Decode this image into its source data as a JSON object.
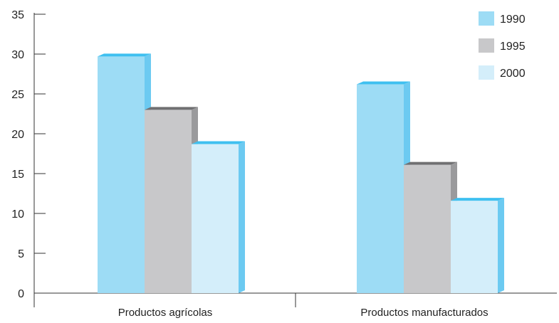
{
  "chart_data": {
    "type": "bar",
    "categories": [
      "Productos agrícolas",
      "Productos manufacturados"
    ],
    "series": [
      {
        "name": "1990",
        "values": [
          29.7,
          26.2
        ],
        "color": "#9ddcf5",
        "side_color": "#6ccaf1",
        "top_color": "#3fc0f0"
      },
      {
        "name": "1995",
        "values": [
          23.0,
          16.1
        ],
        "color": "#c8c8ca",
        "side_color": "#9a9a9c",
        "top_color": "#707072"
      },
      {
        "name": "2000",
        "values": [
          18.7,
          11.6
        ],
        "color": "#d4eefa",
        "side_color": "#6ccaf1",
        "top_color": "#3fc0f0"
      }
    ],
    "yticks": [
      "0",
      "5",
      "10",
      "15",
      "20",
      "25",
      "30",
      "35"
    ],
    "ylim": [
      0,
      35
    ],
    "legend_position": "top-right",
    "grid": false
  }
}
